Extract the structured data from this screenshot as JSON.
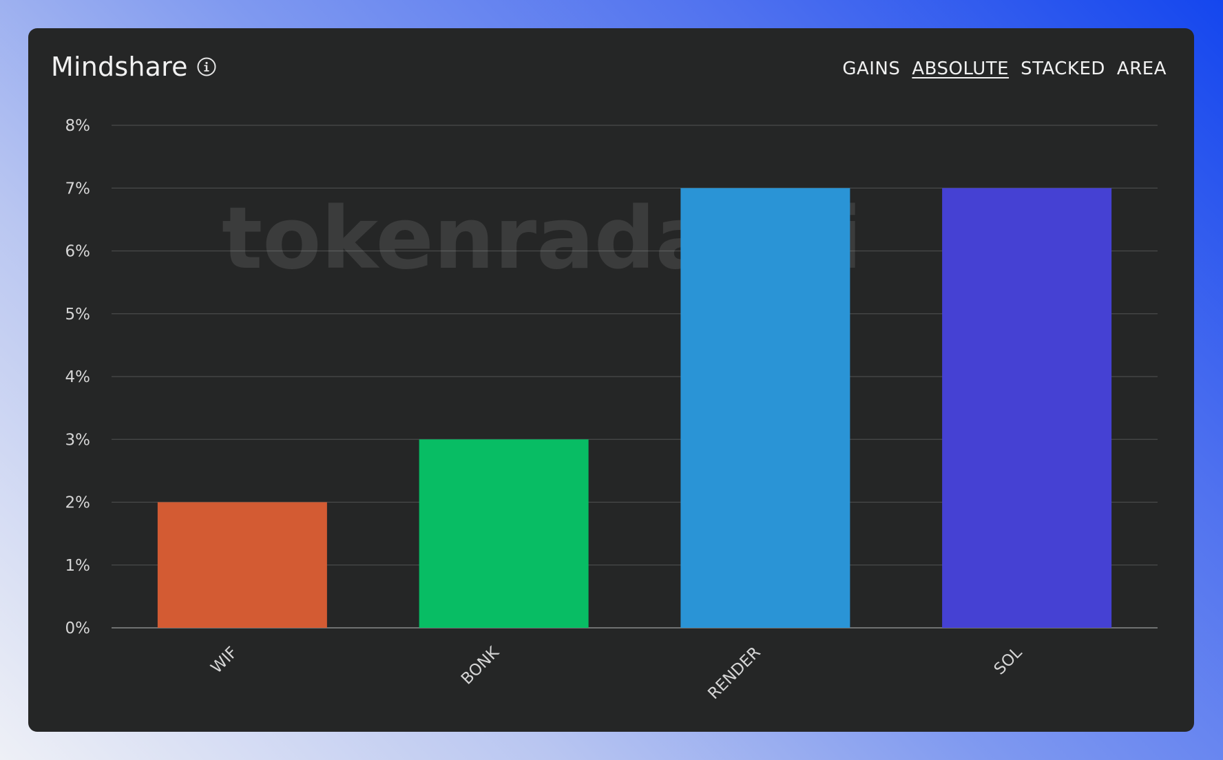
{
  "header": {
    "title": "Mindshare",
    "info_icon": "info-circle-icon"
  },
  "modes": [
    {
      "label": "GAINS",
      "active": false
    },
    {
      "label": "ABSOLUTE",
      "active": true
    },
    {
      "label": "STACKED",
      "active": false
    },
    {
      "label": "AREA",
      "active": false
    }
  ],
  "watermark": "tokenradar.ai",
  "chart_data": {
    "type": "bar",
    "categories": [
      "WIF",
      "BONK",
      "RENDER",
      "SOL"
    ],
    "values": [
      2,
      3,
      7,
      7
    ],
    "colors": [
      "#d35b33",
      "#08bd64",
      "#2a94d6",
      "#4541d3"
    ],
    "ylim": [
      0,
      8
    ],
    "yticks": [
      "0%",
      "1%",
      "2%",
      "3%",
      "4%",
      "5%",
      "6%",
      "7%",
      "8%"
    ],
    "ytick_values": [
      0,
      1,
      2,
      3,
      4,
      5,
      6,
      7,
      8
    ],
    "grid": true,
    "legend": "none"
  }
}
